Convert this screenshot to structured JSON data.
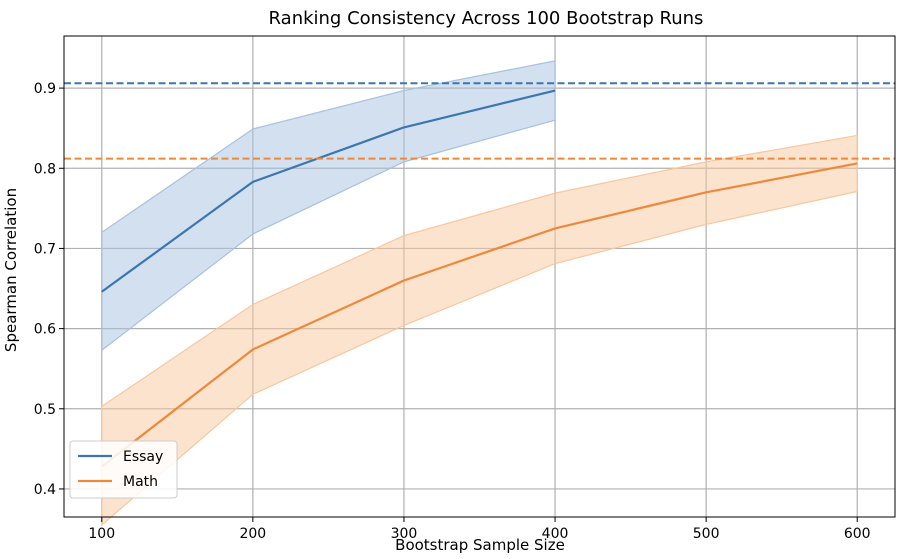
{
  "chart_data": {
    "type": "line",
    "title": "Ranking Consistency Across 100 Bootstrap Runs",
    "xlabel": "Bootstrap Sample Size",
    "ylabel": "Spearman Correlation",
    "xlim": [
      75,
      625
    ],
    "ylim": [
      0.365,
      0.965
    ],
    "xticks": [
      100,
      200,
      300,
      400,
      500,
      600
    ],
    "xtick_labels": [
      "100",
      "200",
      "300",
      "400",
      "500",
      "600"
    ],
    "yticks": [
      0.4,
      0.5,
      0.6,
      0.7,
      0.8,
      0.9
    ],
    "ytick_labels": [
      "0.4",
      "0.5",
      "0.6",
      "0.7",
      "0.8",
      "0.9"
    ],
    "grid": true,
    "legend_position": "lower-left",
    "series": [
      {
        "name": "Essay",
        "color": "#3a76b2",
        "band_color": "#a7c1e1",
        "x": [
          100,
          200,
          300,
          400
        ],
        "values": [
          0.646,
          0.783,
          0.851,
          0.897
        ],
        "lower": [
          0.573,
          0.718,
          0.808,
          0.86
        ],
        "upper": [
          0.72,
          0.849,
          0.897,
          0.934
        ],
        "reference": 0.906
      },
      {
        "name": "Math",
        "color": "#f0883a",
        "band_color": "#f8c79e",
        "x": [
          100,
          200,
          300,
          400,
          500,
          600
        ],
        "values": [
          0.428,
          0.574,
          0.66,
          0.725,
          0.77,
          0.806
        ],
        "lower": [
          0.355,
          0.518,
          0.604,
          0.681,
          0.73,
          0.771
        ],
        "upper": [
          0.503,
          0.63,
          0.716,
          0.769,
          0.808,
          0.841
        ],
        "reference": 0.812
      }
    ]
  }
}
